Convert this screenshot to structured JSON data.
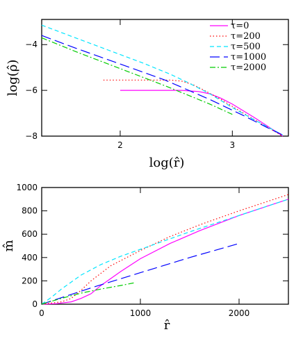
{
  "chart_data": [
    {
      "type": "line",
      "xlabel": "log(r̂)",
      "ylabel": "log(ρ̂)",
      "xlim": [
        1.3,
        3.5
      ],
      "ylim": [
        -8,
        -2.9
      ],
      "x_ticks": [
        2,
        3
      ],
      "x_tick_labels": [
        "2",
        "3"
      ],
      "y_ticks": [
        -8,
        -6,
        -4
      ],
      "y_tick_labels": [
        "−8",
        "−6",
        "−4"
      ],
      "legend_position": "top-right",
      "grid": false,
      "series": [
        {
          "name": "τ=0",
          "color": "#ff00ff",
          "dash": "solid",
          "x": [
            2.0,
            2.3,
            2.55,
            2.7,
            2.8,
            2.9,
            3.0,
            3.2,
            3.45
          ],
          "y": [
            -6.0,
            -6.0,
            -6.0,
            -6.05,
            -6.15,
            -6.35,
            -6.6,
            -7.2,
            -8.0
          ]
        },
        {
          "name": "τ=200",
          "color": "#ff0000",
          "dash": "dotted",
          "x": [
            1.85,
            2.1,
            2.3,
            2.45,
            2.55,
            2.65,
            2.75,
            2.9,
            3.1,
            3.45
          ],
          "y": [
            -5.55,
            -5.55,
            -5.55,
            -5.55,
            -5.6,
            -5.75,
            -6.0,
            -6.4,
            -7.0,
            -8.0
          ]
        },
        {
          "name": "τ=500",
          "color": "#00e5ff",
          "dash": "dashed",
          "x": [
            1.3,
            1.6,
            1.9,
            2.2,
            2.45,
            2.6,
            2.8,
            3.0,
            3.2,
            3.45
          ],
          "y": [
            -3.15,
            -3.7,
            -4.25,
            -4.8,
            -5.3,
            -5.65,
            -6.15,
            -6.75,
            -7.3,
            -7.95
          ]
        },
        {
          "name": "τ=1000",
          "color": "#0000ff",
          "dash": "longdash",
          "x": [
            1.3,
            1.6,
            2.0,
            2.4,
            2.8,
            3.1,
            3.3,
            3.45
          ],
          "y": [
            -3.6,
            -4.15,
            -4.85,
            -5.55,
            -6.4,
            -7.1,
            -7.6,
            -7.95
          ]
        },
        {
          "name": "τ=2000",
          "color": "#00cc00",
          "dash": "dashdot",
          "x": [
            1.3,
            1.6,
            2.0,
            2.4,
            2.8,
            3.0
          ],
          "y": [
            -3.7,
            -4.3,
            -5.05,
            -5.8,
            -6.6,
            -7.05
          ]
        }
      ]
    },
    {
      "type": "line",
      "xlabel": "r̂",
      "ylabel": "m̂",
      "xlim": [
        0,
        2500
      ],
      "ylim": [
        0,
        1000
      ],
      "x_ticks": [
        0,
        1000,
        2000
      ],
      "x_tick_labels": [
        "0",
        "1000",
        "2000"
      ],
      "y_ticks": [
        0,
        200,
        400,
        600,
        800,
        1000
      ],
      "y_tick_labels": [
        "0",
        "200",
        "400",
        "600",
        "800",
        "1000"
      ],
      "legend_position": "none",
      "grid": false,
      "series": [
        {
          "name": "τ=0",
          "color": "#ff00ff",
          "dash": "solid",
          "x": [
            0,
            150,
            300,
            400,
            500,
            600,
            800,
            1000,
            1300,
            1600,
            2000,
            2500
          ],
          "y": [
            0,
            5,
            20,
            50,
            90,
            160,
            280,
            390,
            520,
            630,
            760,
            900
          ]
        },
        {
          "name": "τ=200",
          "color": "#ff0000",
          "dash": "dotted",
          "x": [
            0,
            200,
            300,
            400,
            500,
            700,
            1000,
            1300,
            1600,
            2000,
            2500
          ],
          "y": [
            0,
            20,
            50,
            120,
            200,
            330,
            460,
            580,
            680,
            800,
            940
          ]
        },
        {
          "name": "τ=500",
          "color": "#00e5ff",
          "dash": "dashed",
          "x": [
            0,
            100,
            200,
            400,
            600,
            800,
            1000,
            1500,
            2000,
            2500
          ],
          "y": [
            0,
            60,
            130,
            250,
            340,
            410,
            470,
            620,
            760,
            900
          ]
        },
        {
          "name": "τ=1000",
          "color": "#0000ff",
          "dash": "longdash",
          "x": [
            0,
            500,
            1000,
            1500,
            2000
          ],
          "y": [
            0,
            140,
            270,
            400,
            520
          ]
        },
        {
          "name": "τ=2000",
          "color": "#00cc00",
          "dash": "dashdot",
          "x": [
            0,
            200,
            400,
            600,
            800,
            950
          ],
          "y": [
            0,
            50,
            95,
            130,
            160,
            185
          ]
        }
      ]
    }
  ]
}
